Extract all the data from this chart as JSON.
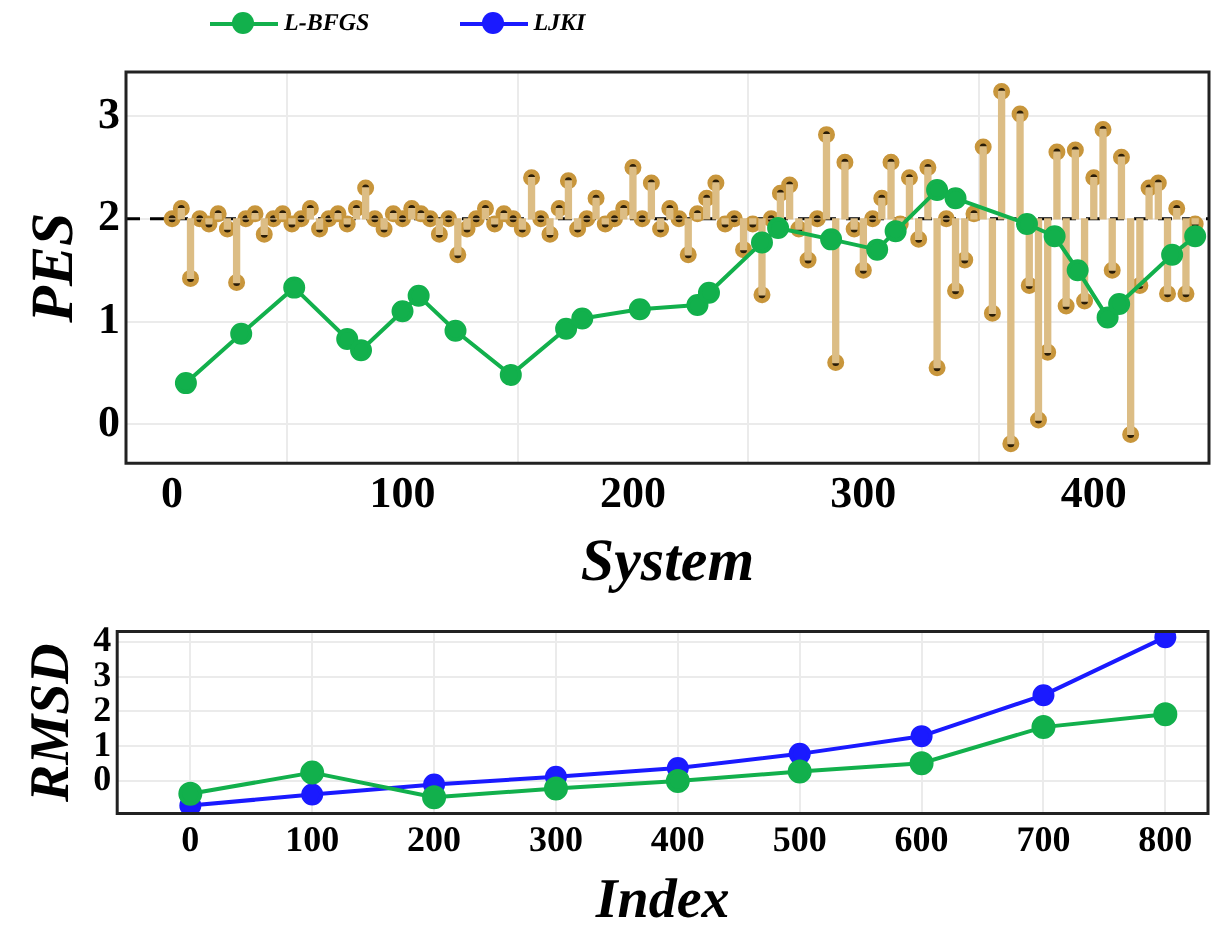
{
  "chart_data": [
    {
      "type": "line",
      "xlabel": "System",
      "ylabel": "PES",
      "xlim": [
        -20,
        450
      ],
      "ylim": [
        -0.38,
        3.43
      ],
      "xticks": [
        0,
        100,
        200,
        300,
        400
      ],
      "yticks": [
        0,
        1,
        2,
        3
      ],
      "grid": true,
      "marker": "circle",
      "ref_lines": [
        {
          "axis": "y",
          "value": 2,
          "color": "#000000",
          "line_style": "dashed"
        }
      ],
      "series": [
        {
          "type": "bar",
          "color": "#dcbd85",
          "x": [
            0,
            4,
            8,
            12,
            16,
            20,
            24,
            28,
            32,
            36,
            40,
            44,
            48,
            52,
            56,
            60,
            64,
            68,
            72,
            76,
            80,
            84,
            88,
            92,
            96,
            100,
            104,
            108,
            112,
            116,
            120,
            124,
            128,
            132,
            136,
            140,
            144,
            148,
            152,
            156,
            160,
            164,
            168,
            172,
            176,
            180,
            184,
            188,
            192,
            196,
            200,
            204,
            208,
            212,
            216,
            220,
            224,
            228,
            232,
            236,
            240,
            244,
            248,
            252,
            256,
            260,
            264,
            268,
            272,
            276,
            280,
            284,
            288,
            292,
            296,
            300,
            304,
            308,
            312,
            316,
            320,
            324,
            328,
            332,
            336,
            340,
            344,
            348,
            352,
            356,
            360,
            364,
            368,
            372,
            376,
            380,
            384,
            388,
            392,
            396,
            400,
            404,
            408,
            412,
            416,
            420,
            424,
            428,
            432,
            436,
            440,
            444
          ],
          "values": [
            0,
            0.1,
            -0.58,
            0,
            -0.05,
            0.05,
            -0.1,
            -0.62,
            0,
            0.05,
            -0.15,
            0,
            0.05,
            -0.05,
            0,
            0.1,
            -0.1,
            0,
            0.05,
            -0.05,
            0.1,
            0.3,
            0,
            -0.1,
            0.05,
            0,
            0.1,
            0.05,
            0,
            -0.15,
            0,
            -0.35,
            -0.1,
            0,
            0.1,
            -0.05,
            0.05,
            0,
            -0.1,
            0.4,
            0,
            -0.15,
            0.1,
            0.37,
            -0.1,
            0,
            0.2,
            -0.05,
            0,
            0.1,
            0.5,
            0,
            0.35,
            -0.1,
            0.1,
            0,
            -0.35,
            0.05,
            0.2,
            0.35,
            -0.05,
            0,
            -0.3,
            -0.05,
            -0.74,
            0,
            0.25,
            0.33,
            -0.1,
            -0.4,
            0,
            0.82,
            -1.4,
            0.55,
            -0.1,
            -0.5,
            0,
            0.2,
            0.55,
            -0.05,
            0.4,
            -0.2,
            0.5,
            -1.45,
            0,
            -0.7,
            -0.4,
            0.05,
            0.7,
            -0.92,
            1.24,
            -2.19,
            1.02,
            -0.65,
            -1.96,
            -1.3,
            0.65,
            -0.85,
            0.67,
            -0.8,
            0.4,
            0.87,
            -0.5,
            0.6,
            -2.1,
            -0.65,
            0.3,
            0.35,
            -0.73,
            0.1,
            -0.73,
            -0.05
          ],
          "base": [
            2,
            2,
            2,
            2,
            2,
            2,
            2,
            2,
            2,
            2,
            2,
            2,
            2,
            2,
            2,
            2,
            2,
            2,
            2,
            2,
            2,
            2,
            2,
            2,
            2,
            2,
            2,
            2,
            2,
            2,
            2,
            2,
            2,
            2,
            2,
            2,
            2,
            2,
            2,
            2,
            2,
            2,
            2,
            2,
            2,
            2,
            2,
            2,
            2,
            2,
            2,
            2,
            2,
            2,
            2,
            2,
            2,
            2,
            2,
            2,
            2,
            2,
            2,
            2,
            2,
            2,
            2,
            2,
            2,
            2,
            2,
            2,
            2,
            2,
            2,
            2,
            2,
            2,
            2,
            2,
            2,
            2,
            2,
            2,
            2,
            2,
            2,
            2,
            2,
            2,
            2,
            2,
            2,
            2,
            2,
            2,
            2,
            2,
            2,
            2,
            2,
            2,
            2,
            2,
            2,
            2,
            2,
            2,
            2,
            2,
            2,
            2
          ]
        },
        {
          "type": "scatter",
          "color": "#c8963c",
          "x": [
            0,
            4,
            8,
            12,
            16,
            20,
            24,
            28,
            32,
            36,
            40,
            44,
            48,
            52,
            56,
            60,
            64,
            68,
            72,
            76,
            80,
            84,
            88,
            92,
            96,
            100,
            104,
            108,
            112,
            116,
            120,
            124,
            128,
            132,
            136,
            140,
            144,
            148,
            152,
            156,
            160,
            164,
            168,
            172,
            176,
            180,
            184,
            188,
            192,
            196,
            200,
            204,
            208,
            212,
            216,
            220,
            224,
            228,
            232,
            236,
            240,
            244,
            248,
            252,
            256,
            260,
            264,
            268,
            272,
            276,
            280,
            284,
            288,
            292,
            296,
            300,
            304,
            308,
            312,
            316,
            320,
            324,
            328,
            332,
            336,
            340,
            344,
            348,
            352,
            356,
            360,
            364,
            368,
            372,
            376,
            380,
            384,
            388,
            392,
            396,
            400,
            404,
            408,
            412,
            416,
            420,
            424,
            428,
            432,
            436,
            440,
            444
          ],
          "values": [
            2.0,
            2.1,
            1.42,
            2.0,
            1.95,
            2.05,
            1.9,
            1.38,
            2.0,
            2.05,
            1.85,
            2.0,
            2.05,
            1.95,
            2.0,
            2.1,
            1.9,
            2.0,
            2.05,
            1.95,
            2.1,
            2.3,
            2.0,
            1.9,
            2.05,
            2.0,
            2.1,
            2.05,
            2.0,
            1.85,
            2.0,
            1.65,
            1.9,
            2.0,
            2.1,
            1.95,
            2.05,
            2.0,
            1.9,
            2.4,
            2.0,
            1.85,
            2.1,
            2.37,
            1.9,
            2.0,
            2.2,
            1.95,
            2.0,
            2.1,
            2.5,
            2.0,
            2.35,
            1.9,
            2.1,
            2.0,
            1.65,
            2.05,
            2.2,
            2.35,
            1.95,
            2.0,
            1.7,
            1.95,
            1.26,
            2.0,
            2.25,
            2.33,
            1.9,
            1.6,
            2.0,
            2.82,
            0.6,
            2.55,
            1.9,
            1.5,
            2.0,
            2.2,
            2.55,
            1.95,
            2.4,
            1.8,
            2.5,
            0.55,
            2.0,
            1.3,
            1.6,
            2.05,
            2.7,
            1.08,
            3.24,
            -0.19,
            3.02,
            1.35,
            0.04,
            0.7,
            2.65,
            1.15,
            2.67,
            1.2,
            2.4,
            2.87,
            1.5,
            2.6,
            -0.1,
            1.35,
            2.3,
            2.35,
            1.27,
            2.1,
            1.27,
            1.95
          ]
        },
        {
          "type": "line",
          "color": "#12b04c",
          "x": [
            6,
            30,
            53,
            76,
            82,
            100,
            107,
            123,
            147,
            171,
            178,
            203,
            228,
            233,
            256,
            263,
            286,
            306,
            314,
            332,
            340,
            371,
            383,
            393,
            406,
            411,
            434,
            444
          ],
          "values": [
            0.4,
            0.88,
            1.33,
            0.83,
            0.72,
            1.1,
            1.25,
            0.91,
            0.48,
            0.93,
            1.03,
            1.12,
            1.16,
            1.28,
            1.77,
            1.91,
            1.8,
            1.7,
            1.88,
            2.28,
            2.2,
            1.95,
            1.83,
            1.5,
            1.04,
            1.17,
            1.65,
            1.83
          ]
        }
      ]
    },
    {
      "type": "line",
      "xlabel": "Index",
      "ylabel": "RMSD",
      "xlim": [
        -60,
        835
      ],
      "ylim": [
        -0.94,
        4.3
      ],
      "xticks": [
        0,
        100,
        200,
        300,
        400,
        500,
        600,
        700,
        800
      ],
      "yticks": [
        0,
        1,
        2,
        3,
        4
      ],
      "grid": true,
      "marker": "circle",
      "legend": "top left",
      "series": [
        {
          "name": "L-BFGS",
          "color": "#12b04c",
          "x": [
            0,
            100,
            200,
            300,
            400,
            500,
            600,
            700,
            800
          ],
          "values": [
            -0.37,
            0.24,
            -0.47,
            -0.22,
            0,
            0.27,
            0.51,
            1.55,
            1.92
          ]
        },
        {
          "name": "LJKI",
          "color": "#1a1aff",
          "x": [
            0,
            100,
            200,
            300,
            400,
            500,
            600,
            700,
            800
          ],
          "values": [
            -0.71,
            -0.39,
            -0.1,
            0.12,
            0.37,
            0.78,
            1.29,
            2.47,
            4.14
          ]
        }
      ]
    }
  ]
}
